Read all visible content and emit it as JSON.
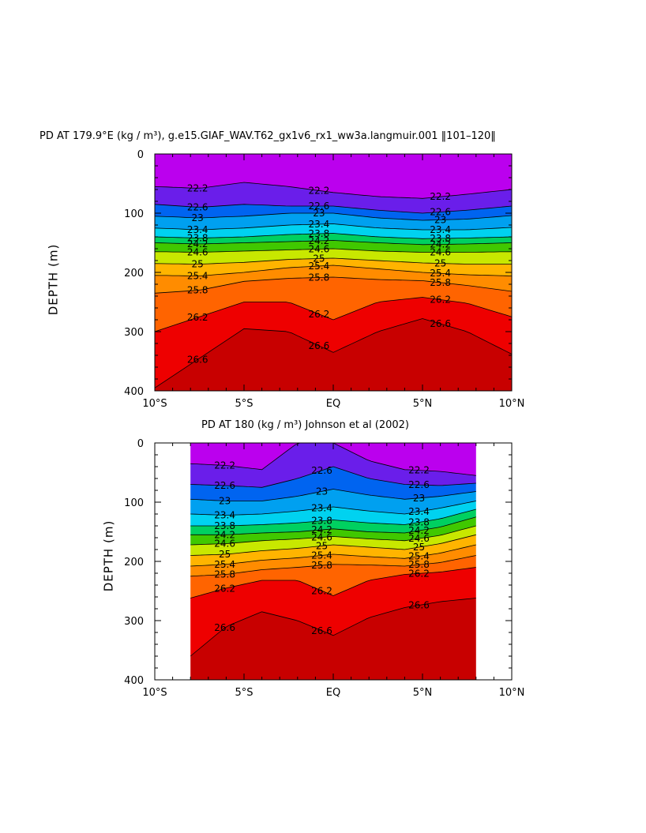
{
  "chart_data": [
    {
      "type": "heatmap",
      "subtype": "filled-contour",
      "title": "PD AT 179.9°E (kg / m³), g.e15.GIAF_WAV.T62_gx1v6_rx1_ww3a.langmuir.001 ‖101–120‖",
      "ylabel": "DEPTH (m)",
      "xlabel": "",
      "x_ticks": [
        "10°S",
        "5°S",
        "EQ",
        "5°N",
        "10°N"
      ],
      "x_tick_values": [
        -10,
        -5,
        0,
        5,
        10
      ],
      "y_ticks": [
        "0",
        "100",
        "200",
        "300",
        "400"
      ],
      "y_tick_values": [
        0,
        100,
        200,
        300,
        400
      ],
      "xlim": [
        -10,
        10
      ],
      "ylim": [
        400,
        0
      ],
      "data_xlim": [
        -10,
        10
      ],
      "colorscale": [
        "#bb00ee",
        "#6a1eea",
        "#0028ff",
        "#0064f0",
        "#00a0f0",
        "#00d2f0",
        "#00e8b0",
        "#00d060",
        "#40c800",
        "#c8e800",
        "#ffe800",
        "#ffb400",
        "#ff8c00",
        "#ff6400",
        "#ff2800",
        "#ee0000",
        "#c80000"
      ],
      "contour_interval": 0.2,
      "contour_labels": [
        "22.2",
        "22.6",
        "23",
        "23.4",
        "23.8",
        "24.2",
        "24.6",
        "25",
        "25.4",
        "25.8",
        "26.2",
        "26.6"
      ],
      "isopycnal_depth_profiles": {
        "x": [
          -10,
          -7.5,
          -5,
          -2.5,
          0,
          2.5,
          5,
          7.5,
          10
        ],
        "levels": [
          {
            "sigma": 22.2,
            "depth": [
              55,
              58,
              48,
              55,
              65,
              72,
              75,
              68,
              60
            ]
          },
          {
            "sigma": 22.6,
            "depth": [
              85,
              90,
              85,
              88,
              88,
              95,
              100,
              95,
              88
            ]
          },
          {
            "sigma": 23.0,
            "depth": [
              105,
              108,
              105,
              100,
              100,
              108,
              112,
              110,
              104
            ]
          },
          {
            "sigma": 23.4,
            "depth": [
              125,
              128,
              125,
              120,
              118,
              125,
              128,
              128,
              124
            ]
          },
          {
            "sigma": 23.8,
            "depth": [
              140,
              142,
              140,
              136,
              134,
              140,
              143,
              142,
              140
            ]
          },
          {
            "sigma": 24.2,
            "depth": [
              150,
              152,
              150,
              148,
              146,
              150,
              153,
              152,
              150
            ]
          },
          {
            "sigma": 24.6,
            "depth": [
              165,
              166,
              164,
              162,
              160,
              164,
              166,
              166,
              165
            ]
          },
          {
            "sigma": 25.0,
            "depth": [
              185,
              186,
              183,
              178,
              176,
              180,
              184,
              186,
              186
            ]
          },
          {
            "sigma": 25.4,
            "depth": [
              205,
              206,
              200,
              192,
              188,
              194,
              200,
              204,
              206
            ]
          },
          {
            "sigma": 25.8,
            "depth": [
              235,
              230,
              215,
              210,
              208,
              212,
              214,
              222,
              232
            ]
          },
          {
            "sigma": 26.2,
            "depth": [
              300,
              275,
              250,
              250,
              280,
              250,
              242,
              252,
              275
            ]
          },
          {
            "sigma": 26.6,
            "depth": [
              395,
              345,
              295,
              300,
              335,
              300,
              278,
              300,
              338
            ]
          }
        ]
      }
    },
    {
      "type": "heatmap",
      "subtype": "filled-contour",
      "title": "PD AT 180 (kg / m³) Johnson et al (2002)",
      "ylabel": "DEPTH (m)",
      "xlabel": "",
      "x_ticks": [
        "10°S",
        "5°S",
        "EQ",
        "5°N",
        "10°N"
      ],
      "x_tick_values": [
        -10,
        -5,
        0,
        5,
        10
      ],
      "y_ticks": [
        "0",
        "100",
        "200",
        "300",
        "400"
      ],
      "y_tick_values": [
        0,
        100,
        200,
        300,
        400
      ],
      "xlim": [
        -10,
        10
      ],
      "ylim": [
        400,
        0
      ],
      "data_xlim": [
        -8,
        8
      ],
      "colorscale": [
        "#bb00ee",
        "#6a1eea",
        "#0028ff",
        "#0064f0",
        "#00a0f0",
        "#00d2f0",
        "#00e8b0",
        "#00d060",
        "#40c800",
        "#c8e800",
        "#ffe800",
        "#ffb400",
        "#ff8c00",
        "#ff6400",
        "#ff2800",
        "#ee0000",
        "#c80000"
      ],
      "contour_interval": 0.2,
      "contour_labels": [
        "22.2",
        "22.6",
        "23",
        "23.4",
        "23.8",
        "24.2",
        "24.6",
        "25",
        "25.4",
        "25.8",
        "26.2",
        "26.6"
      ],
      "isopycnal_depth_profiles": {
        "x": [
          -8,
          -6,
          -4,
          -2,
          0,
          2,
          4,
          6,
          8
        ],
        "levels": [
          {
            "sigma": 22.2,
            "depth": [
              35,
              38,
              45,
              0,
              0,
              30,
              45,
              48,
              55
            ]
          },
          {
            "sigma": 22.6,
            "depth": [
              70,
              72,
              75,
              60,
              40,
              60,
              70,
              72,
              68
            ]
          },
          {
            "sigma": 23.0,
            "depth": [
              95,
              98,
              98,
              90,
              78,
              88,
              95,
              90,
              82
            ]
          },
          {
            "sigma": 23.4,
            "depth": [
              120,
              122,
              120,
              115,
              108,
              115,
              120,
              110,
              98
            ]
          },
          {
            "sigma": 23.8,
            "depth": [
              140,
              140,
              138,
              135,
              130,
              135,
              138,
              128,
              112
            ]
          },
          {
            "sigma": 24.2,
            "depth": [
              155,
              155,
              152,
              150,
              145,
              150,
              152,
              142,
              125
            ]
          },
          {
            "sigma": 24.6,
            "depth": [
              172,
              170,
              165,
              162,
              158,
              162,
              165,
              156,
              140
            ]
          },
          {
            "sigma": 25.0,
            "depth": [
              190,
              188,
              182,
              178,
              172,
              176,
              180,
              170,
              155
            ]
          },
          {
            "sigma": 25.4,
            "depth": [
              208,
              205,
              198,
              194,
              188,
              192,
              195,
              186,
              172
            ]
          },
          {
            "sigma": 25.8,
            "depth": [
              225,
              222,
              214,
              210,
              205,
              206,
              208,
              202,
              190
            ]
          },
          {
            "sigma": 26.2,
            "depth": [
              262,
              245,
              232,
              232,
              258,
              232,
              222,
              218,
              210
            ]
          },
          {
            "sigma": 26.6,
            "depth": [
              360,
              310,
              285,
              300,
              325,
              295,
              278,
              268,
              262
            ]
          }
        ]
      }
    }
  ]
}
